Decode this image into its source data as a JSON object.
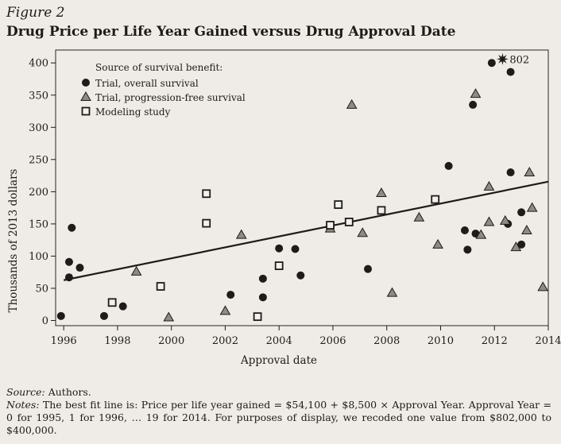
{
  "figure": {
    "label": "Figure 2",
    "title": "Drug Price per Life Year Gained versus Drug Approval Date"
  },
  "footer": {
    "source_label": "Source:",
    "source_text": "Authors.",
    "notes_label": "Notes:",
    "notes_text": "The best fit line is: Price per life year gained = $54,100 + $8,500 × Approval Year. Approval Year = 0 for 1995, 1 for 1996, … 19 for 2014. For purposes of display, we recoded one value from $802,000 to $400,000."
  },
  "chart_data": {
    "type": "scatter",
    "title": "Drug Price per Life Year Gained versus Drug Approval Date",
    "xlabel": "Approval date",
    "ylabel": "Thousands of 2013 dollars",
    "xlim": [
      1995.7,
      2014
    ],
    "ylim": [
      -8,
      420
    ],
    "xticks": [
      1996,
      1998,
      2000,
      2002,
      2004,
      2006,
      2008,
      2010,
      2012,
      2014
    ],
    "yticks": [
      0,
      50,
      100,
      150,
      200,
      250,
      300,
      350,
      400
    ],
    "grid": false,
    "legend": {
      "title": "Source of survival benefit:",
      "placement": "top-left"
    },
    "series": [
      {
        "name": "Trial, overall survival",
        "marker": "circle",
        "points": [
          [
            1995.9,
            7
          ],
          [
            1996.2,
            91
          ],
          [
            1996.2,
            67
          ],
          [
            1996.3,
            144
          ],
          [
            1996.6,
            82
          ],
          [
            1997.5,
            7
          ],
          [
            1998.2,
            22
          ],
          [
            2002.2,
            40
          ],
          [
            2003.4,
            65
          ],
          [
            2003.4,
            36
          ],
          [
            2004.0,
            112
          ],
          [
            2004.6,
            111
          ],
          [
            2004.8,
            70
          ],
          [
            2007.3,
            80
          ],
          [
            2010.3,
            240
          ],
          [
            2010.9,
            140
          ],
          [
            2011.0,
            110
          ],
          [
            2011.2,
            335
          ],
          [
            2011.3,
            135
          ],
          [
            2011.9,
            400
          ],
          [
            2012.5,
            150
          ],
          [
            2012.6,
            386
          ],
          [
            2012.6,
            230
          ],
          [
            2013.0,
            168
          ],
          [
            2013.0,
            118
          ]
        ]
      },
      {
        "name": "Trial, progression-free survival",
        "marker": "triangle",
        "points": [
          [
            1998.7,
            76
          ],
          [
            1999.9,
            5
          ],
          [
            2002.0,
            15
          ],
          [
            2002.6,
            133
          ],
          [
            2005.9,
            143
          ],
          [
            2006.7,
            335
          ],
          [
            2007.1,
            136
          ],
          [
            2007.8,
            198
          ],
          [
            2008.2,
            43
          ],
          [
            2009.2,
            160
          ],
          [
            2009.9,
            118
          ],
          [
            2011.3,
            352
          ],
          [
            2011.5,
            133
          ],
          [
            2011.8,
            208
          ],
          [
            2011.8,
            153
          ],
          [
            2012.4,
            155
          ],
          [
            2012.8,
            114
          ],
          [
            2013.2,
            140
          ],
          [
            2013.3,
            230
          ],
          [
            2013.4,
            175
          ],
          [
            2013.8,
            52
          ]
        ]
      },
      {
        "name": "Modeling study",
        "marker": "square",
        "points": [
          [
            1997.8,
            28
          ],
          [
            1999.6,
            53
          ],
          [
            2001.3,
            197
          ],
          [
            2001.3,
            151
          ],
          [
            2003.2,
            6
          ],
          [
            2004.0,
            85
          ],
          [
            2005.9,
            148
          ],
          [
            2006.2,
            180
          ],
          [
            2006.6,
            153
          ],
          [
            2007.8,
            171
          ],
          [
            2009.8,
            188
          ]
        ]
      },
      {
        "name": "802",
        "marker": "star",
        "points": [
          [
            2012.3,
            406
          ]
        ]
      }
    ],
    "fit_line": {
      "from": [
        1996,
        62.6
      ],
      "to": [
        2014,
        215.6
      ]
    },
    "annotations": [
      {
        "text": "802",
        "x": 2012.3,
        "y": 406
      }
    ]
  }
}
